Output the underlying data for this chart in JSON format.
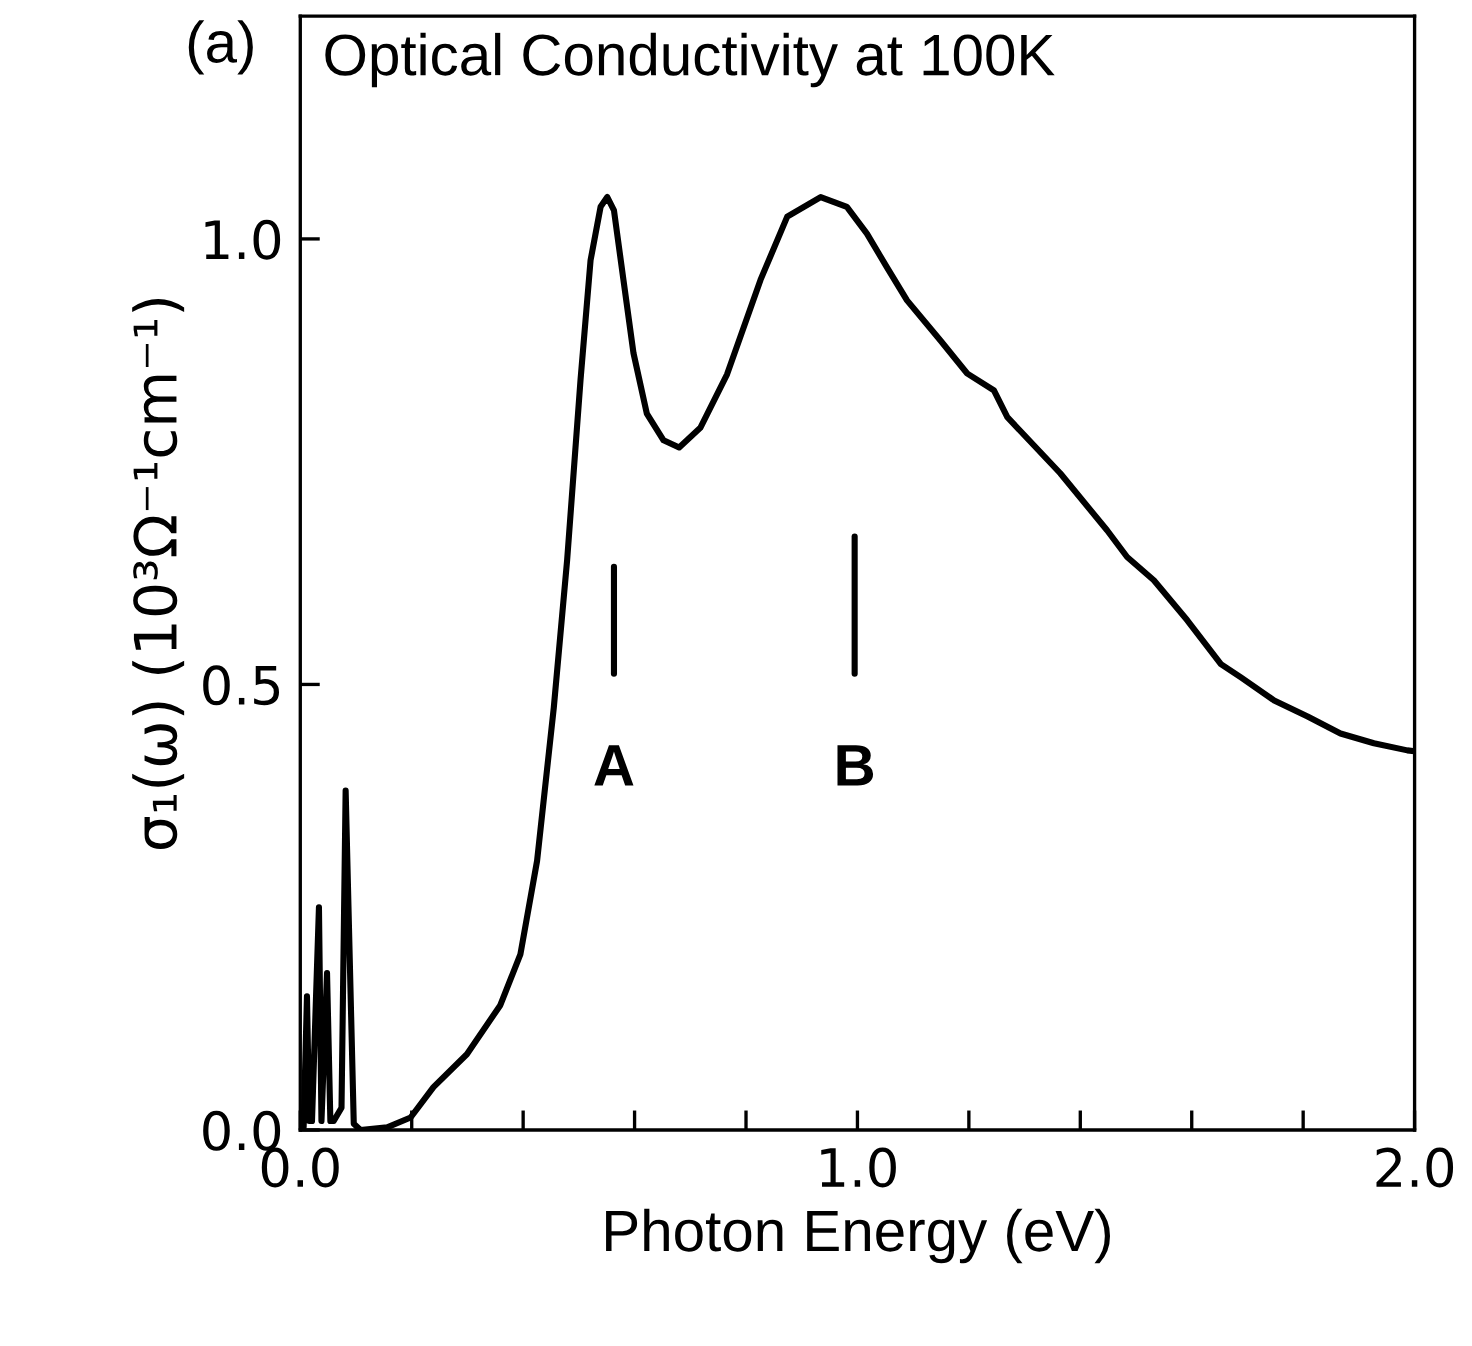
{
  "chart_data": {
    "type": "line",
    "title": "Optical Conductivity at 100K",
    "xlabel": "Photon Energy (eV)",
    "ylabel": "σ₁(ω) (10³Ω⁻¹cm⁻¹)",
    "annotations": [
      "(a)",
      "A",
      "B"
    ],
    "series": [
      {
        "color": "#000000",
        "x": [
          0.006,
          0.012,
          0.016,
          0.021,
          0.0335,
          0.038,
          0.048,
          0.054,
          0.06,
          0.074,
          0.0814,
          0.096,
          0.108,
          0.156,
          0.198,
          0.239,
          0.299,
          0.359,
          0.395,
          0.425,
          0.455,
          0.479,
          0.503,
          0.521,
          0.539,
          0.551,
          0.563,
          0.58,
          0.598,
          0.622,
          0.652,
          0.68,
          0.718,
          0.766,
          0.826,
          0.874,
          0.934,
          0.981,
          1.017,
          1.053,
          1.089,
          1.149,
          1.197,
          1.245,
          1.269,
          1.364,
          1.448,
          1.484,
          1.532,
          1.592,
          1.652,
          1.688,
          1.748,
          1.808,
          1.867,
          1.927,
          1.987,
          2.0
        ],
        "values": [
          0.003,
          0.15,
          0.01,
          0.01,
          0.25,
          0.01,
          0.176,
          0.01,
          0.01,
          0.025,
          0.381,
          0.007,
          0.0,
          0.003,
          0.014,
          0.048,
          0.085,
          0.14,
          0.197,
          0.302,
          0.474,
          0.64,
          0.842,
          0.976,
          1.036,
          1.047,
          1.032,
          0.954,
          0.872,
          0.804,
          0.774,
          0.766,
          0.788,
          0.848,
          0.954,
          1.025,
          1.047,
          1.036,
          1.006,
          0.968,
          0.931,
          0.886,
          0.849,
          0.83,
          0.8,
          0.737,
          0.673,
          0.643,
          0.617,
          0.572,
          0.523,
          0.508,
          0.482,
          0.464,
          0.445,
          0.434,
          0.426,
          0.425
        ]
      },
      {
        "color": "#000000",
        "x": [
          0.563,
          0.563
        ],
        "values": [
          0.512,
          0.632
        ]
      },
      {
        "color": "#000000",
        "x": [
          0.995,
          0.995
        ],
        "values": [
          0.512,
          0.666
        ]
      }
    ],
    "xlim": [
      0,
      2.0
    ],
    "ylim": [
      0,
      1.25
    ],
    "xticks": [
      {
        "value": 0,
        "label": "0.0"
      },
      {
        "value": 0.2,
        "label": null
      },
      {
        "value": 0.4,
        "label": null
      },
      {
        "value": 0.6,
        "label": null
      },
      {
        "value": 0.8,
        "label": null
      },
      {
        "value": 1.0,
        "label": "1.0"
      },
      {
        "value": 1.2,
        "label": null
      },
      {
        "value": 1.4,
        "label": null
      },
      {
        "value": 1.6,
        "label": null
      },
      {
        "value": 1.8,
        "label": null
      },
      {
        "value": 2.0,
        "label": "2.0"
      }
    ],
    "yticks": [
      {
        "value": 0,
        "label": "0.0"
      },
      {
        "value": 0.5,
        "label": "0.5"
      },
      {
        "value": 1.0,
        "label": "1.0"
      }
    ],
    "grid": false,
    "legend": false
  }
}
